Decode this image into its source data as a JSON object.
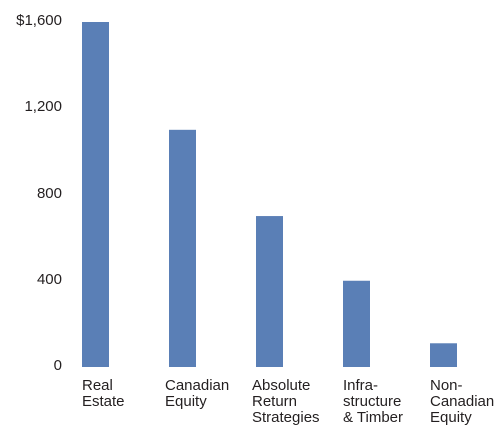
{
  "chart_data": {
    "type": "bar",
    "title": "",
    "xlabel": "",
    "ylabel": "",
    "categories": [
      [
        "Real",
        "Estate"
      ],
      [
        "Canadian",
        "Equity"
      ],
      [
        "Absolute",
        "Return",
        "Strategies"
      ],
      [
        "Infra-",
        "structure",
        "& Timber"
      ],
      [
        "Non-",
        "Canadian",
        "Equity"
      ]
    ],
    "values": [
      1600,
      1100,
      700,
      400,
      110
    ],
    "ylim": [
      0,
      1600
    ],
    "yticks": [
      0,
      400,
      800,
      1200,
      1600
    ],
    "ytick_labels": [
      "0",
      "400",
      "800",
      "1,200",
      "$1,600"
    ],
    "grid": false,
    "bar_color": "#5a7fb6"
  }
}
